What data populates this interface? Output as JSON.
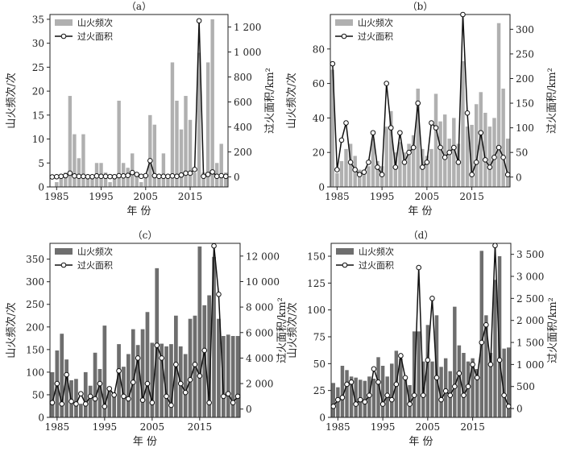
{
  "legend": {
    "bar_label": "山火频次",
    "line_label": "过火面积"
  },
  "colors": {
    "bar_light": "#b0b0b0",
    "bar_dark": "#6e6e6e",
    "line": "#111111",
    "marker_fill": "#ffffff"
  },
  "chart_data": [
    {
      "panel": "（a）",
      "type": "bar+line",
      "bar_color": "#b0b0b0",
      "xlabel": "年 份",
      "ylabel_left": "山火频次/次",
      "ylabel_right": "过火面积/km²",
      "x_start": 1984,
      "x_end": 2023,
      "xticks": [
        1985,
        1995,
        2005,
        2015
      ],
      "xtick_labels": [
        "1985",
        "1995",
        "2005",
        "2015"
      ],
      "ylim_left": [
        0,
        36
      ],
      "yticks_left": [
        0,
        5,
        10,
        15,
        20,
        25,
        30,
        35
      ],
      "ytick_labels_left": [
        "0",
        "5",
        "10",
        "15",
        "20",
        "25",
        "30",
        "35"
      ],
      "ylim_right": [
        -80,
        1300
      ],
      "yticks_right": [
        0,
        200,
        400,
        600,
        800,
        1000,
        1200
      ],
      "ytick_labels_right": [
        "0",
        "200",
        "400",
        "600",
        "800",
        "1 000",
        "1 200"
      ],
      "bars": [
        0,
        1,
        2,
        3,
        19,
        11,
        6,
        11,
        2,
        2,
        5,
        5,
        3,
        1,
        2,
        18,
        5,
        4,
        7,
        3,
        1,
        2,
        15,
        13,
        2,
        7,
        2,
        26,
        18,
        12,
        19,
        14,
        3,
        28,
        3,
        26,
        35,
        5,
        9,
        3
      ],
      "line": [
        0,
        2,
        5,
        10,
        30,
        8,
        5,
        5,
        2,
        2,
        8,
        5,
        5,
        3,
        2,
        10,
        8,
        12,
        35,
        20,
        5,
        10,
        130,
        10,
        5,
        5,
        5,
        8,
        5,
        15,
        30,
        30,
        60,
        1250,
        5,
        20,
        40,
        5,
        10,
        5
      ]
    },
    {
      "panel": "（b）",
      "type": "bar+line",
      "bar_color": "#b0b0b0",
      "xlabel": "年 份",
      "ylabel_left": "山火频次/次",
      "ylabel_right": "过火面积/km²",
      "x_start": 1984,
      "x_end": 2023,
      "xticks": [
        1985,
        1995,
        2005,
        2015
      ],
      "xtick_labels": [
        "1985",
        "1995",
        "2005",
        "2015"
      ],
      "ylim_left": [
        0,
        100
      ],
      "yticks_left": [
        0,
        20,
        40,
        60,
        80
      ],
      "ytick_labels_left": [
        "0",
        "20",
        "40",
        "60",
        "80"
      ],
      "ylim_right": [
        -20,
        330
      ],
      "yticks_right": [
        0,
        50,
        100,
        150,
        200,
        250,
        300
      ],
      "ytick_labels_right": [
        "0",
        "50",
        "100",
        "150",
        "200",
        "250",
        "300"
      ],
      "bars": [
        68,
        8,
        15,
        22,
        25,
        18,
        10,
        8,
        12,
        28,
        15,
        12,
        35,
        44,
        20,
        26,
        20,
        25,
        30,
        57,
        22,
        18,
        22,
        54,
        38,
        42,
        28,
        40,
        25,
        73,
        35,
        36,
        48,
        55,
        43,
        35,
        40,
        95,
        57,
        28
      ],
      "line": [
        230,
        15,
        75,
        110,
        30,
        15,
        5,
        10,
        30,
        90,
        20,
        5,
        190,
        100,
        20,
        90,
        30,
        50,
        60,
        150,
        20,
        30,
        110,
        100,
        60,
        40,
        50,
        60,
        30,
        330,
        130,
        5,
        30,
        90,
        35,
        20,
        40,
        60,
        40,
        5
      ]
    },
    {
      "panel": "（c）",
      "type": "bar+line",
      "bar_color": "#6e6e6e",
      "xlabel": "年 份",
      "ylabel_left": "山火频次/次",
      "ylabel_right": "过火面积/km²",
      "x_start": 1984,
      "x_end": 2023,
      "xticks": [
        1985,
        1995,
        2005,
        2015
      ],
      "xtick_labels": [
        "1985",
        "1995",
        "2005",
        "2015"
      ],
      "ylim_left": [
        0,
        385
      ],
      "yticks_left": [
        0,
        50,
        100,
        150,
        200,
        250,
        300,
        350
      ],
      "ytick_labels_left": [
        "0",
        "50",
        "100",
        "150",
        "200",
        "250",
        "300",
        "350"
      ],
      "ylim_right": [
        -650,
        13000
      ],
      "yticks_right": [
        0,
        2000,
        4000,
        6000,
        8000,
        10000,
        12000
      ],
      "ytick_labels_right": [
        "0",
        "2 000",
        "4 000",
        "6 000",
        "8 000",
        "10 000",
        "12 000"
      ],
      "bars": [
        100,
        148,
        185,
        128,
        82,
        85,
        30,
        100,
        70,
        143,
        107,
        203,
        65,
        55,
        162,
        112,
        140,
        195,
        160,
        195,
        233,
        165,
        330,
        163,
        157,
        162,
        225,
        157,
        140,
        218,
        225,
        378,
        248,
        270,
        355,
        218,
        180,
        183,
        180,
        180
      ],
      "line": [
        500,
        2000,
        400,
        2700,
        600,
        400,
        1200,
        400,
        1000,
        800,
        2000,
        200,
        1600,
        1100,
        3000,
        1000,
        800,
        2100,
        4000,
        700,
        2000,
        500,
        5000,
        4000,
        1000,
        300,
        3500,
        2000,
        1300,
        2300,
        3500,
        2600,
        4600,
        500,
        12800,
        9000,
        1000,
        1200,
        500,
        1000
      ]
    },
    {
      "panel": "（d）",
      "type": "bar+line",
      "bar_color": "#6e6e6e",
      "xlabel": "年 份",
      "ylabel_left": "山火频次/次",
      "ylabel_right": "过火面积/km²",
      "x_start": 1984,
      "x_end": 2023,
      "xticks": [
        1985,
        1995,
        2005,
        2015
      ],
      "xtick_labels": [
        "1985",
        "1995",
        "2005",
        "2015"
      ],
      "ylim_left": [
        0,
        162
      ],
      "yticks_left": [
        0,
        25,
        50,
        75,
        100,
        125,
        150
      ],
      "ytick_labels_left": [
        "0",
        "25",
        "50",
        "75",
        "100",
        "125",
        "150"
      ],
      "ylim_right": [
        -200,
        3750
      ],
      "yticks_right": [
        0,
        500,
        1000,
        1500,
        2000,
        2500,
        3000,
        3500
      ],
      "ytick_labels_right": [
        "0",
        "500",
        "1 000",
        "1 500",
        "2 000",
        "2 500",
        "3 000",
        "3 500"
      ],
      "bars": [
        32,
        28,
        48,
        44,
        38,
        37,
        35,
        34,
        38,
        36,
        56,
        48,
        38,
        50,
        62,
        55,
        38,
        30,
        80,
        80,
        52,
        86,
        52,
        95,
        47,
        55,
        43,
        103,
        67,
        60,
        52,
        55,
        45,
        155,
        95,
        60,
        128,
        150,
        64,
        65
      ],
      "line": [
        50,
        200,
        250,
        550,
        600,
        100,
        200,
        150,
        300,
        900,
        600,
        100,
        300,
        200,
        550,
        1200,
        700,
        100,
        300,
        3200,
        300,
        1100,
        2500,
        700,
        200,
        400,
        300,
        500,
        800,
        300,
        500,
        1000,
        700,
        1500,
        1900,
        1000,
        3700,
        1100,
        300,
        50
      ]
    }
  ]
}
